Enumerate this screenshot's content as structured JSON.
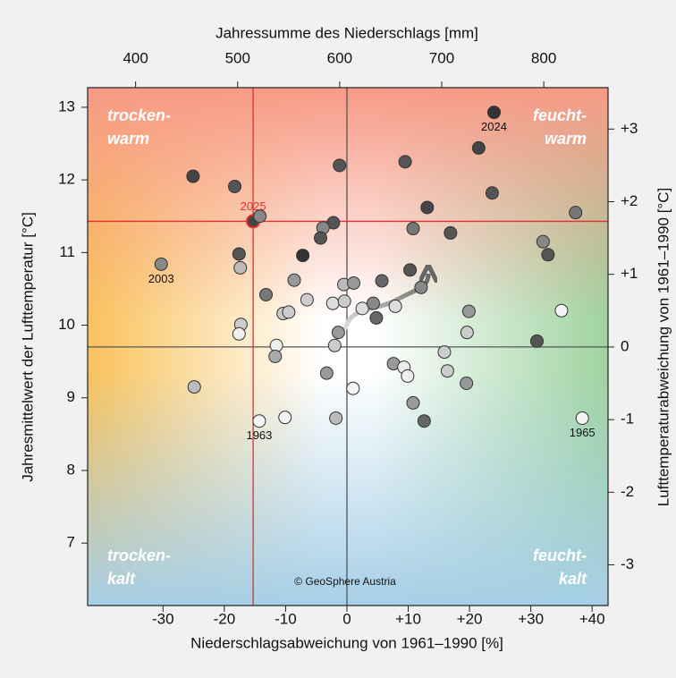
{
  "chart_data": {
    "type": "scatter",
    "x_label": "Niederschlagsabweichung von 1961–1990 [%]",
    "x2_label": "Jahressumme des Niederschlags [mm]",
    "y_label": "Jahresmittelwert der Lufttemperatur [°C]",
    "y2_label": "Lufttemperaturabweichung von 1961–1990 [°C]",
    "xlim": [
      -42.3,
      42.6
    ],
    "xticks": [
      -30,
      -20,
      -10,
      0,
      {
        "value": 10,
        "label": "+10"
      },
      {
        "value": 20,
        "label": "+20"
      },
      {
        "value": 30,
        "label": "+30"
      },
      {
        "value": 40,
        "label": "+40"
      }
    ],
    "x2lim": [
      353,
      863
    ],
    "x2ticks": [
      400,
      500,
      600,
      700,
      800
    ],
    "ylim": [
      6.14,
      13.27
    ],
    "yticks": [
      7,
      8,
      9,
      10,
      11,
      12,
      13
    ],
    "y2lim": [
      -3.56,
      3.57
    ],
    "y2ticks": [
      {
        "value": 3,
        "label": "+3"
      },
      {
        "value": 2,
        "label": "+2"
      },
      {
        "value": 1,
        "label": "+1"
      },
      0,
      -1,
      -2,
      -3
    ],
    "reference_lines": {
      "x": 0,
      "y": 9.7,
      "color": "#555555"
    },
    "highlight_lines": {
      "x": -15.3,
      "y": 11.43,
      "color": "#e03030"
    },
    "quadrant_labels": {
      "top_left": [
        "trocken-",
        "warm"
      ],
      "top_right": [
        "feucht-",
        "warm"
      ],
      "bottom_left": [
        "trocken-",
        "kalt"
      ],
      "bottom_right": [
        "feucht-",
        "kalt"
      ]
    },
    "copyright": "© GeoSphere Austria",
    "x": [
      -25.1,
      -18.3,
      -1.2,
      9.5,
      24.0,
      21.5,
      23.7,
      37.3,
      13.1,
      -15.3,
      -14.2,
      -2.2,
      -3.9,
      -4.3,
      -17.6,
      -17.4,
      -30.3,
      -7.2,
      10.3,
      10.8,
      16.9,
      32.0,
      32.8,
      12.1,
      5.7,
      2.5,
      4.8,
      4.3,
      7.9,
      -0.5,
      1.1,
      -8.6,
      -13.2,
      -6.5,
      -10.4,
      -9.5,
      -2.3,
      -0.4,
      -1.4,
      -2.0,
      -17.3,
      -17.6,
      -11.5,
      -11.7,
      -3.3,
      -24.9,
      -14.3,
      -10.1,
      -1.8,
      1.0,
      7.6,
      9.3,
      9.9,
      15.9,
      16.4,
      19.5,
      19.6,
      19.9,
      10.8,
      12.6,
      31.0,
      35.0,
      38.4
    ],
    "values": [
      12.05,
      11.91,
      12.2,
      12.25,
      12.93,
      12.44,
      11.82,
      11.55,
      11.62,
      11.43,
      11.5,
      11.41,
      11.34,
      11.2,
      10.98,
      10.79,
      10.84,
      10.96,
      10.76,
      11.33,
      11.27,
      11.15,
      10.97,
      10.52,
      10.61,
      10.23,
      10.1,
      10.3,
      10.26,
      10.56,
      10.58,
      10.62,
      10.42,
      10.35,
      10.16,
      10.18,
      10.3,
      10.33,
      9.9,
      9.72,
      10.01,
      9.88,
      9.72,
      9.57,
      9.34,
      9.15,
      8.68,
      8.73,
      8.72,
      9.13,
      9.47,
      9.42,
      9.3,
      9.63,
      9.37,
      9.2,
      9.9,
      10.19,
      8.93,
      8.68,
      9.78,
      10.2,
      8.72
    ],
    "colors": [
      "#444444",
      "#555555",
      "#555555",
      "#555555",
      "#333333",
      "#444444",
      "#555555",
      "#777777",
      "#444444",
      "#444444",
      "#888888",
      "#555555",
      "#888888",
      "#555555",
      "#555555",
      "#bbbbbb",
      "#888888",
      "#333333",
      "#555555",
      "#777777",
      "#555555",
      "#888888",
      "#555555",
      "#888888",
      "#666666",
      "#dddddd",
      "#666666",
      "#888888",
      "#dddddd",
      "#bbbbbb",
      "#999999",
      "#999999",
      "#777777",
      "#cccccc",
      "#cccccc",
      "#cccccc",
      "#dddddd",
      "#cccccc",
      "#999999",
      "#cccccc",
      "#cccccc",
      "#eeeeee",
      "#eeeeee",
      "#aaaaaa",
      "#999999",
      "#bbbbbb",
      "#f4f4f4",
      "#f4f4f4",
      "#bbbbbb",
      "#f4f4f4",
      "#999999",
      "#eeeeee",
      "#eeeeee",
      "#cccccc",
      "#cccccc",
      "#999999",
      "#cccccc",
      "#999999",
      "#999999",
      "#666666",
      "#555555",
      "#f4f4f4",
      "#f4f4f4"
    ],
    "labels": [
      null,
      null,
      null,
      null,
      "2024",
      null,
      null,
      null,
      null,
      "2025",
      null,
      null,
      null,
      null,
      null,
      null,
      "2003",
      null,
      null,
      null,
      null,
      null,
      null,
      null,
      null,
      null,
      null,
      null,
      null,
      null,
      null,
      null,
      null,
      null,
      null,
      null,
      null,
      null,
      null,
      null,
      null,
      null,
      null,
      null,
      null,
      null,
      "1963",
      null,
      null,
      null,
      null,
      null,
      null,
      null,
      null,
      null,
      null,
      null,
      null,
      null,
      null,
      null,
      "1965"
    ]
  }
}
